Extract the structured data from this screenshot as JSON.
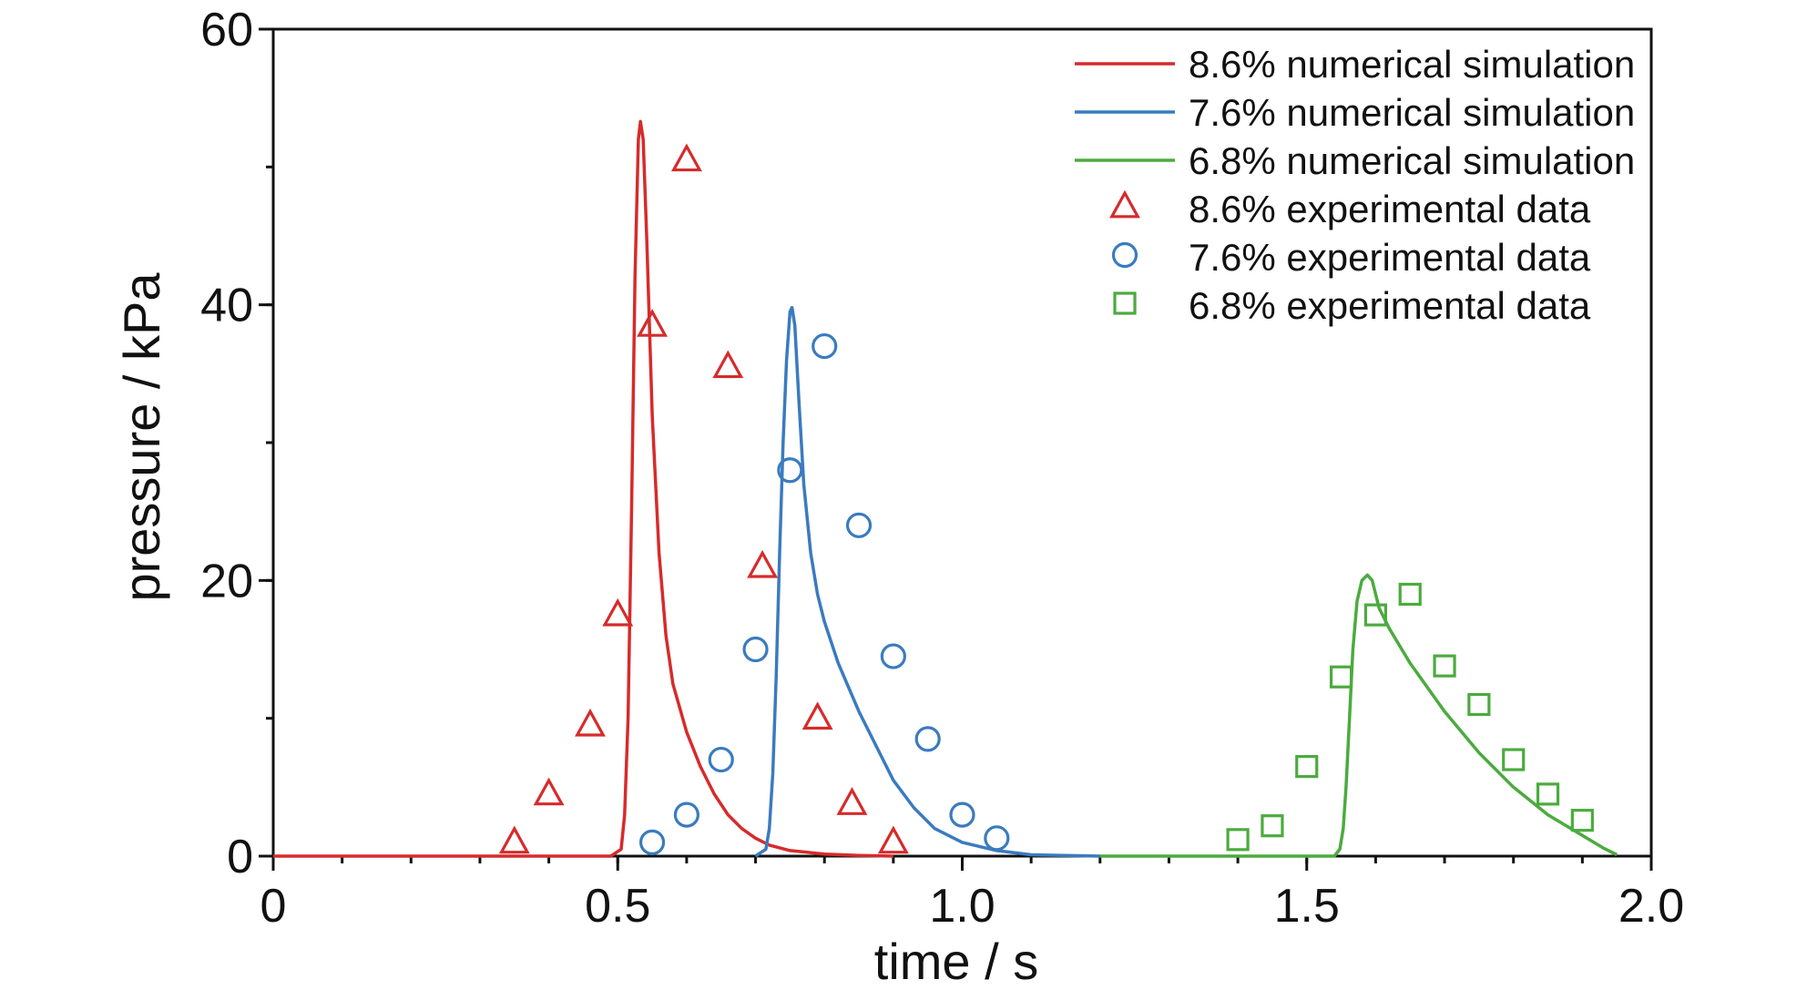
{
  "chart_data": {
    "type": "line",
    "xlabel": "time / s",
    "ylabel": "pressure / kPa",
    "xlim": [
      0,
      2.0
    ],
    "ylim": [
      0,
      60
    ],
    "x_ticks": [
      {
        "value": 0,
        "label": "0"
      },
      {
        "value": 0.5,
        "label": "0.5"
      },
      {
        "value": 1.0,
        "label": "1.0"
      },
      {
        "value": 1.5,
        "label": "1.5"
      },
      {
        "value": 2.0,
        "label": "2.0"
      }
    ],
    "y_ticks": [
      {
        "value": 0,
        "label": "0"
      },
      {
        "value": 20,
        "label": "20"
      },
      {
        "value": 40,
        "label": "40"
      },
      {
        "value": 60,
        "label": "60"
      }
    ],
    "x_minor_step": 0.1,
    "y_minor_step": 10,
    "grid": false,
    "legend_position": "top-right",
    "series": [
      {
        "name": "8.6% numerical simulation",
        "kind": "line",
        "color": "#d62b2b",
        "points": [
          [
            0,
            0
          ],
          [
            0.49,
            0
          ],
          [
            0.505,
            0.5
          ],
          [
            0.51,
            3
          ],
          [
            0.515,
            10
          ],
          [
            0.52,
            25
          ],
          [
            0.525,
            42
          ],
          [
            0.53,
            52
          ],
          [
            0.533,
            53.3
          ],
          [
            0.537,
            52
          ],
          [
            0.542,
            45
          ],
          [
            0.55,
            32
          ],
          [
            0.56,
            22
          ],
          [
            0.57,
            16
          ],
          [
            0.58,
            12.5
          ],
          [
            0.6,
            9
          ],
          [
            0.62,
            6.5
          ],
          [
            0.64,
            4.5
          ],
          [
            0.66,
            3
          ],
          [
            0.68,
            2
          ],
          [
            0.7,
            1.3
          ],
          [
            0.72,
            0.8
          ],
          [
            0.75,
            0.4
          ],
          [
            0.8,
            0.15
          ],
          [
            0.85,
            0.05
          ],
          [
            0.9,
            0
          ]
        ]
      },
      {
        "name": "7.6% numerical simulation",
        "kind": "line",
        "color": "#3a7bbf",
        "points": [
          [
            0.7,
            0
          ],
          [
            0.715,
            0.5
          ],
          [
            0.72,
            2
          ],
          [
            0.725,
            6
          ],
          [
            0.73,
            13
          ],
          [
            0.735,
            22
          ],
          [
            0.74,
            30
          ],
          [
            0.745,
            36
          ],
          [
            0.75,
            39.5
          ],
          [
            0.753,
            39.8
          ],
          [
            0.757,
            38.5
          ],
          [
            0.763,
            33
          ],
          [
            0.77,
            27
          ],
          [
            0.78,
            22
          ],
          [
            0.79,
            19
          ],
          [
            0.8,
            17
          ],
          [
            0.82,
            14
          ],
          [
            0.85,
            10.5
          ],
          [
            0.88,
            7.5
          ],
          [
            0.9,
            5.5
          ],
          [
            0.93,
            3.5
          ],
          [
            0.96,
            2
          ],
          [
            1.0,
            1
          ],
          [
            1.05,
            0.4
          ],
          [
            1.1,
            0.1
          ],
          [
            1.2,
            0
          ]
        ]
      },
      {
        "name": "6.8% numerical simulation",
        "kind": "line",
        "color": "#4bab3e",
        "points": [
          [
            1.2,
            0
          ],
          [
            1.54,
            0
          ],
          [
            1.548,
            0.5
          ],
          [
            1.553,
            2
          ],
          [
            1.557,
            5
          ],
          [
            1.562,
            10
          ],
          [
            1.567,
            15
          ],
          [
            1.573,
            18.5
          ],
          [
            1.58,
            20
          ],
          [
            1.588,
            20.4
          ],
          [
            1.595,
            20
          ],
          [
            1.605,
            18
          ],
          [
            1.62,
            16.5
          ],
          [
            1.65,
            14
          ],
          [
            1.7,
            10.5
          ],
          [
            1.75,
            7.5
          ],
          [
            1.8,
            5
          ],
          [
            1.85,
            3
          ],
          [
            1.9,
            1.5
          ],
          [
            1.93,
            0.6
          ],
          [
            1.95,
            0.1
          ]
        ]
      },
      {
        "name": "8.6% experimental data",
        "kind": "marker",
        "marker": "triangle",
        "color": "#d62b2b",
        "points": [
          [
            0.35,
            1
          ],
          [
            0.4,
            4.5
          ],
          [
            0.46,
            9.5
          ],
          [
            0.5,
            17.5
          ],
          [
            0.55,
            38.5
          ],
          [
            0.6,
            50.5
          ],
          [
            0.66,
            35.5
          ],
          [
            0.71,
            21
          ],
          [
            0.79,
            10
          ],
          [
            0.84,
            3.8
          ],
          [
            0.9,
            1
          ]
        ]
      },
      {
        "name": "7.6% experimental data",
        "kind": "marker",
        "marker": "circle",
        "color": "#3a7bbf",
        "points": [
          [
            0.55,
            1
          ],
          [
            0.6,
            3
          ],
          [
            0.65,
            7
          ],
          [
            0.7,
            15
          ],
          [
            0.75,
            28
          ],
          [
            0.8,
            37
          ],
          [
            0.85,
            24
          ],
          [
            0.9,
            14.5
          ],
          [
            0.95,
            8.5
          ],
          [
            1.0,
            3
          ],
          [
            1.05,
            1.3
          ]
        ]
      },
      {
        "name": "6.8% experimental data",
        "kind": "marker",
        "marker": "square",
        "color": "#4bab3e",
        "points": [
          [
            1.4,
            1.2
          ],
          [
            1.45,
            2.2
          ],
          [
            1.5,
            6.5
          ],
          [
            1.55,
            13
          ],
          [
            1.6,
            17.5
          ],
          [
            1.65,
            19
          ],
          [
            1.7,
            13.8
          ],
          [
            1.75,
            11
          ],
          [
            1.8,
            7
          ],
          [
            1.85,
            4.5
          ],
          [
            1.9,
            2.6
          ]
        ]
      }
    ]
  }
}
